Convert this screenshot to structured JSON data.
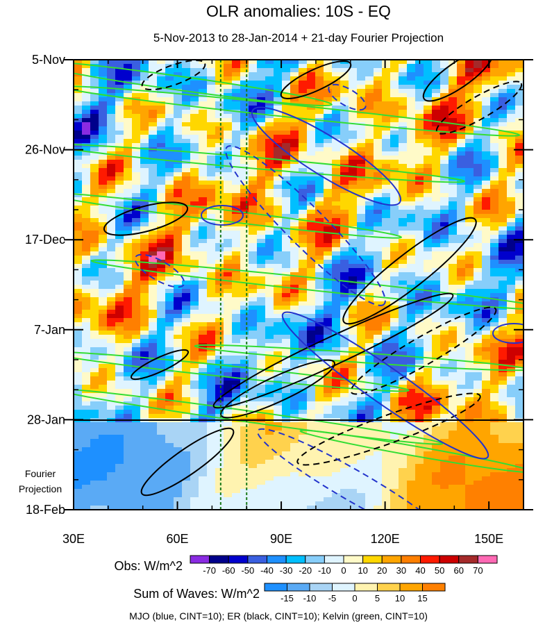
{
  "chart_data": {
    "type": "heatmap",
    "title": "OLR anomalies: 10S - EQ",
    "subtitle": "5-Nov-2013 to 28-Jan-2014 + 21-day Fourier Projection",
    "x_ticks": [
      "30E",
      "60E",
      "90E",
      "120E",
      "150E"
    ],
    "x_tick_values": [
      30,
      60,
      90,
      120,
      150
    ],
    "xlim": [
      30,
      160
    ],
    "y_ticks": [
      "5-Nov",
      "26-Nov",
      "17-Dec",
      "7-Jan",
      "28-Jan",
      "18-Feb"
    ],
    "y_tick_days": [
      0,
      21,
      42,
      63,
      84,
      105
    ],
    "ylim_days": [
      0,
      105
    ],
    "projection_label_line1": "Fourier",
    "projection_label_line2": "Projection",
    "projection_start_day": 84,
    "reference_lines_lon": [
      72.5,
      80
    ],
    "legend_obs": {
      "label": "Obs: W/m^2",
      "ticks": [
        "-70",
        "-60",
        "-50",
        "-40",
        "-30",
        "-20",
        "-10",
        "0",
        "10",
        "20",
        "30",
        "40",
        "50",
        "60",
        "70"
      ],
      "colors": [
        "#8a2be2",
        "#00008b",
        "#0000cd",
        "#3a5fe0",
        "#1e90ff",
        "#00bfff",
        "#87cefa",
        "#dff4ff",
        "#fffac8",
        "#ffd700",
        "#ffa500",
        "#ff7f00",
        "#ff1a00",
        "#cd0000",
        "#a52a2a",
        "#ff69b4"
      ]
    },
    "legend_waves": {
      "label": "Sum of Waves: W/m^2",
      "ticks": [
        "-15",
        "-10",
        "-5",
        "0",
        "5",
        "10",
        "15"
      ],
      "colors": [
        "#1e90ff",
        "#5aaaf5",
        "#a9d4f5",
        "#dff4ff",
        "#fff3b0",
        "#ffd24d",
        "#ffa500",
        "#ff8000"
      ]
    },
    "footnote": "MJO (blue, CINT=10); ER (black, CINT=10); Kelvin (green, CINT=10)",
    "series": [
      {
        "name": "MJO",
        "color": "#2233cc"
      },
      {
        "name": "ER",
        "color": "#000000"
      },
      {
        "name": "Kelvin",
        "color": "#33dd33"
      }
    ]
  }
}
